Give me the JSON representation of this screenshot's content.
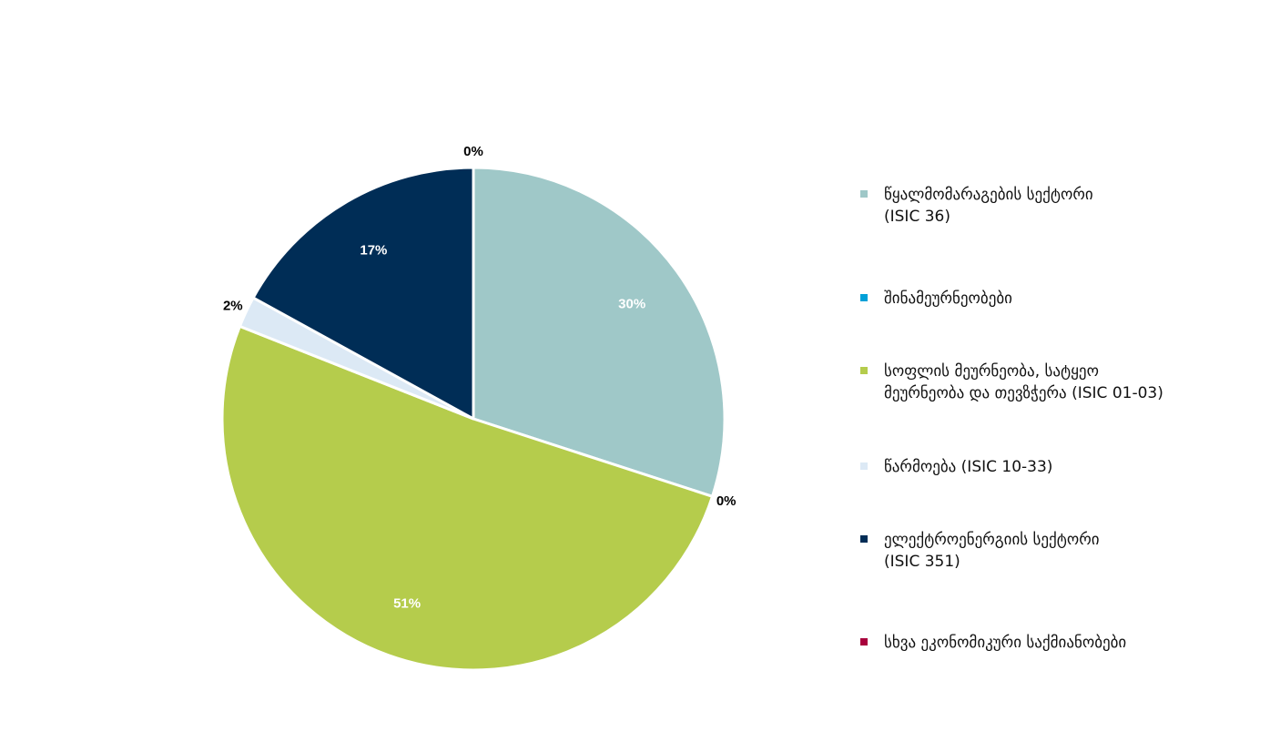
{
  "chart_data": {
    "type": "pie",
    "start_angle_deg": 0,
    "direction": "clockwise",
    "legend_position": "right",
    "slices": [
      {
        "label": "წყალმომარაგების სექტორი (ISIC 36)",
        "legend_text": "წყალმომარაგების სექტორი\n(ISIC 36)",
        "value": 30,
        "display": "30%",
        "color": "#9fc8c8",
        "label_color": "#ffffff",
        "label_placement": "inside"
      },
      {
        "label": "შინამეურნეობები",
        "legend_text": "შინამეურნეობები",
        "value": 0,
        "display": "0%",
        "color": "#00a0d8",
        "label_color": "#000000",
        "label_placement": "outside"
      },
      {
        "label": "სოფლის მეურნეობა, სატყეო მეურნეობა და თევზჭერა (ISIC 01-03)",
        "legend_text": "სოფლის მეურნეობა, სატყეო\nმეურნეობა და თევზჭერა (ISIC 01-03)",
        "value": 51,
        "display": "51%",
        "color": "#b5cc4c",
        "label_color": "#ffffff",
        "label_placement": "inside"
      },
      {
        "label": "წარმოება (ISIC 10-33)",
        "legend_text": "წარმოება (ISIC 10-33)",
        "value": 2,
        "display": "2%",
        "color": "#dce9f5",
        "label_color": "#000000",
        "label_placement": "outside"
      },
      {
        "label": "ელექტროენერგიის სექტორი (ISIC 351)",
        "legend_text": "ელექტროენერგიის სექტორი\n(ISIC 351)",
        "value": 17,
        "display": "17%",
        "color": "#002d56",
        "label_color": "#ffffff",
        "label_placement": "inside"
      },
      {
        "label": "სხვა ეკონომიკური საქმიანობები",
        "legend_text": "სხვა ეკონომიკური საქმიანობები",
        "value": 0,
        "display": "0%",
        "color": "#a8003c",
        "label_color": "#000000",
        "label_placement": "outside"
      }
    ]
  }
}
